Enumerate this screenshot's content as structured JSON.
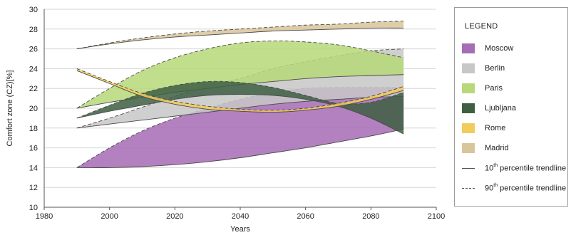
{
  "chart_data": {
    "type": "area",
    "xlabel": "Years",
    "ylabel": "Comfort zone (CZ)[%]",
    "xlim": [
      1980,
      2100
    ],
    "ylim": [
      10,
      30
    ],
    "x_ticks": [
      1980,
      2000,
      2020,
      2040,
      2060,
      2080,
      2100
    ],
    "y_ticks": [
      10,
      12,
      14,
      16,
      18,
      20,
      22,
      24,
      26,
      28,
      30
    ],
    "grid": "horizontal",
    "legend_position": "right",
    "legend_title": "LEGEND",
    "line_legend": [
      {
        "label": "10",
        "sup": "th",
        "suffix": " percentile trendline",
        "style": "solid"
      },
      {
        "label": "90",
        "sup": "th",
        "suffix": " percentile trendline",
        "style": "dashed"
      }
    ],
    "x": [
      1990,
      2000,
      2010,
      2020,
      2030,
      2040,
      2050,
      2060,
      2070,
      2080,
      2090
    ],
    "series": [
      {
        "name": "Moscow",
        "color": "#a66cb5",
        "p10": [
          14.0,
          14.0,
          14.1,
          14.3,
          14.6,
          15.0,
          15.5,
          16.0,
          16.6,
          17.2,
          17.9
        ],
        "p90": [
          14.0,
          16.0,
          17.7,
          19.0,
          20.0,
          20.9,
          21.6,
          22.0,
          22.1,
          22.1,
          22.1
        ]
      },
      {
        "name": "Berlin",
        "color": "#c7c7c7",
        "p10": [
          18.0,
          18.4,
          18.8,
          19.2,
          19.6,
          20.0,
          20.4,
          20.7,
          20.9,
          21.1,
          21.2
        ],
        "p90": [
          18.0,
          19.0,
          20.1,
          21.2,
          22.3,
          23.0,
          24.0,
          24.7,
          25.3,
          25.8,
          26.0
        ]
      },
      {
        "name": "Paris",
        "color": "#b7d97a",
        "p10": [
          20.0,
          20.6,
          21.1,
          21.6,
          22.0,
          22.4,
          22.7,
          23.0,
          23.2,
          23.3,
          23.4
        ],
        "p90": [
          20.0,
          22.0,
          23.8,
          25.1,
          26.0,
          26.6,
          26.8,
          26.7,
          26.4,
          25.8,
          25.1
        ]
      },
      {
        "name": "Ljubljana",
        "color": "#3f5f43",
        "p10": [
          19.0,
          19.7,
          20.3,
          20.9,
          21.3,
          21.4,
          21.3,
          20.9,
          20.2,
          19.0,
          17.4
        ],
        "p90": [
          19.0,
          20.3,
          21.5,
          22.3,
          22.7,
          22.6,
          22.1,
          21.3,
          20.5,
          20.6,
          21.6
        ]
      },
      {
        "name": "Rome",
        "color": "#f2cc5a",
        "p10": [
          23.8,
          22.5,
          21.2,
          20.4,
          19.9,
          19.7,
          19.6,
          19.8,
          20.2,
          20.9,
          21.8
        ],
        "p90": [
          24.0,
          22.7,
          21.5,
          20.7,
          20.2,
          19.9,
          19.8,
          20.0,
          20.5,
          21.2,
          22.2
        ]
      },
      {
        "name": "Madrid",
        "color": "#d9c59a",
        "p10": [
          26.0,
          26.5,
          26.9,
          27.2,
          27.4,
          27.6,
          27.8,
          27.9,
          28.0,
          28.1,
          28.1
        ],
        "p90": [
          26.0,
          26.6,
          27.1,
          27.5,
          27.8,
          28.0,
          28.2,
          28.4,
          28.5,
          28.7,
          28.8
        ]
      }
    ]
  }
}
